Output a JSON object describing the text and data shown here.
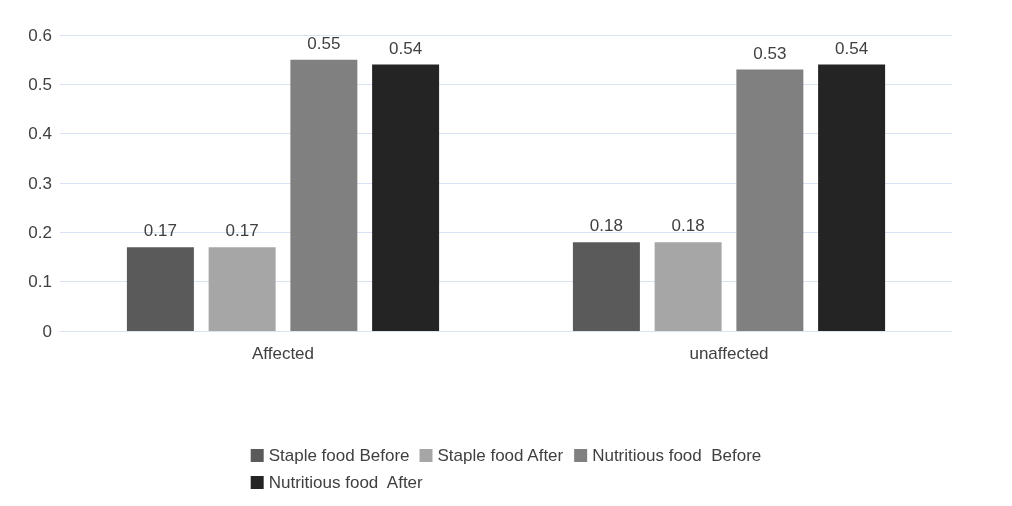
{
  "chart_data": {
    "type": "bar",
    "categories": [
      "Affected",
      "unaffected"
    ],
    "series": [
      {
        "name": "Staple food Before",
        "color": "#5a5a5a",
        "values": [
          0.17,
          0.18
        ]
      },
      {
        "name": "Staple food After",
        "color": "#a6a6a6",
        "values": [
          0.17,
          0.18
        ]
      },
      {
        "name": "Nutritious food  Before",
        "color": "#808080",
        "values": [
          0.55,
          0.53
        ]
      },
      {
        "name": "Nutritious food  After",
        "color": "#242424",
        "values": [
          0.54,
          0.54
        ]
      }
    ],
    "ylim": [
      0,
      0.6
    ],
    "yticks": [
      0,
      0.1,
      0.2,
      0.3,
      0.4,
      0.5,
      0.6
    ],
    "grid": "y",
    "legend": "bottom",
    "data_labels": true
  }
}
